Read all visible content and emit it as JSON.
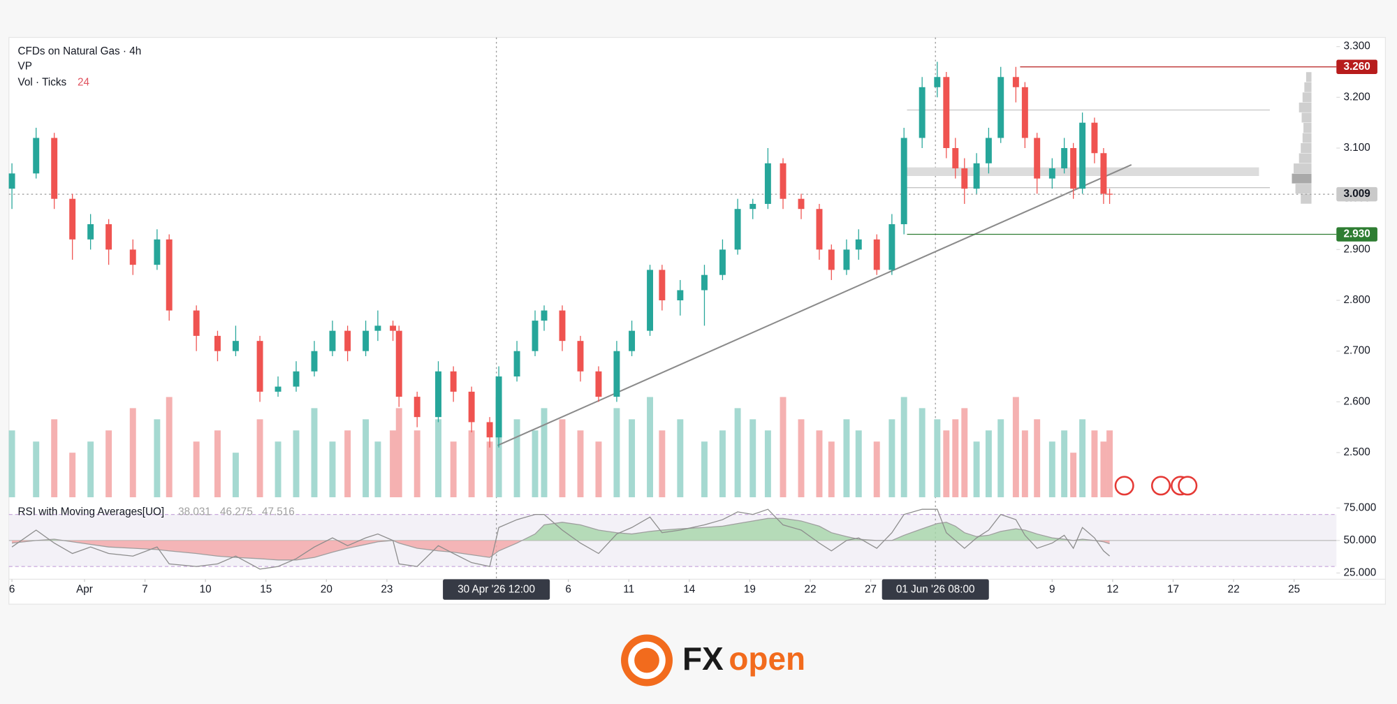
{
  "header": {
    "title": "CFDs on Natural Gas · 4h",
    "vp": "VP",
    "vol_label": "Vol · Ticks",
    "vol_length": "24"
  },
  "chart_data": {
    "type": "candlestick",
    "x": [
      0,
      0.4,
      0.7,
      1.0,
      1.3,
      1.6,
      2.0,
      2.4,
      2.6,
      3.05,
      3.4,
      3.7,
      4.1,
      4.4,
      4.7,
      5.0,
      5.3,
      5.55,
      5.85,
      6.05,
      6.3,
      6.4,
      6.7,
      7.05,
      7.3,
      7.6,
      7.9,
      8.05,
      8.35,
      8.65,
      8.8,
      9.1,
      9.4,
      9.7,
      10.0,
      10.25,
      10.55,
      10.75,
      11.05,
      11.45,
      11.75,
      12.0,
      12.25,
      12.5,
      12.75,
      13.05,
      13.35,
      13.55,
      13.8,
      14.0,
      14.3,
      14.55,
      14.75,
      15.05,
      15.3,
      15.45,
      15.6,
      15.75,
      15.95,
      16.15,
      16.35,
      16.6,
      16.75,
      16.95,
      17.2,
      17.4,
      17.55,
      17.7,
      17.9,
      18.05,
      18.15
    ],
    "open": [
      3.02,
      3.05,
      3.12,
      3.0,
      2.92,
      2.95,
      2.9,
      2.87,
      2.92,
      2.78,
      2.73,
      2.7,
      2.72,
      2.62,
      2.63,
      2.66,
      2.7,
      2.74,
      2.7,
      2.74,
      2.75,
      2.74,
      2.61,
      2.57,
      2.66,
      2.62,
      2.56,
      2.53,
      2.65,
      2.7,
      2.76,
      2.78,
      2.72,
      2.66,
      2.61,
      2.7,
      2.74,
      2.86,
      2.8,
      2.82,
      2.85,
      2.9,
      2.98,
      2.99,
      3.07,
      3.0,
      2.98,
      2.9,
      2.86,
      2.9,
      2.92,
      2.86,
      2.95,
      3.12,
      3.22,
      3.24,
      3.1,
      3.06,
      3.02,
      3.07,
      3.12,
      3.24,
      3.22,
      3.12,
      3.04,
      3.06,
      3.1,
      3.02,
      3.15,
      3.09,
      3.01
    ],
    "high": [
      3.07,
      3.14,
      3.13,
      3.01,
      2.97,
      2.96,
      2.92,
      2.94,
      2.93,
      2.79,
      2.74,
      2.75,
      2.73,
      2.65,
      2.68,
      2.72,
      2.76,
      2.75,
      2.76,
      2.78,
      2.76,
      2.75,
      2.62,
      2.68,
      2.67,
      2.63,
      2.57,
      2.67,
      2.72,
      2.78,
      2.79,
      2.79,
      2.73,
      2.67,
      2.72,
      2.76,
      2.87,
      2.87,
      2.84,
      2.87,
      2.92,
      3.0,
      3.0,
      3.1,
      3.08,
      3.01,
      2.99,
      2.91,
      2.92,
      2.94,
      2.93,
      2.97,
      3.14,
      3.24,
      3.27,
      3.25,
      3.12,
      3.08,
      3.09,
      3.14,
      3.26,
      3.26,
      3.23,
      3.13,
      3.08,
      3.12,
      3.11,
      3.17,
      3.16,
      3.1,
      3.02
    ],
    "low": [
      2.98,
      3.04,
      2.98,
      2.88,
      2.9,
      2.87,
      2.85,
      2.86,
      2.76,
      2.7,
      2.68,
      2.69,
      2.6,
      2.61,
      2.62,
      2.65,
      2.69,
      2.68,
      2.69,
      2.72,
      2.72,
      2.59,
      2.55,
      2.56,
      2.6,
      2.54,
      2.51,
      2.51,
      2.64,
      2.69,
      2.74,
      2.7,
      2.64,
      2.6,
      2.6,
      2.69,
      2.73,
      2.78,
      2.77,
      2.75,
      2.84,
      2.89,
      2.96,
      2.98,
      2.98,
      2.96,
      2.88,
      2.84,
      2.85,
      2.88,
      2.85,
      2.85,
      2.93,
      3.1,
      3.2,
      3.08,
      3.04,
      2.99,
      3.01,
      3.05,
      3.11,
      3.19,
      3.1,
      3.01,
      3.02,
      3.05,
      3.0,
      3.01,
      3.07,
      2.99,
      2.99
    ],
    "close": [
      3.05,
      3.12,
      3.0,
      2.92,
      2.95,
      2.9,
      2.87,
      2.92,
      2.78,
      2.73,
      2.7,
      2.72,
      2.62,
      2.63,
      2.66,
      2.7,
      2.74,
      2.7,
      2.74,
      2.75,
      2.74,
      2.61,
      2.57,
      2.66,
      2.62,
      2.56,
      2.53,
      2.65,
      2.7,
      2.76,
      2.78,
      2.72,
      2.66,
      2.61,
      2.7,
      2.74,
      2.86,
      2.8,
      2.82,
      2.85,
      2.9,
      2.98,
      2.99,
      3.07,
      3.0,
      2.98,
      2.9,
      2.86,
      2.9,
      2.92,
      2.86,
      2.95,
      3.12,
      3.22,
      3.24,
      3.1,
      3.06,
      3.02,
      3.07,
      3.12,
      3.24,
      3.22,
      3.12,
      3.04,
      3.06,
      3.1,
      3.02,
      3.15,
      3.09,
      3.01,
      3.009
    ],
    "volume": [
      6,
      5,
      7,
      4,
      5,
      6,
      8,
      7,
      9,
      5,
      6,
      4,
      7,
      5,
      6,
      8,
      5,
      6,
      7,
      5,
      6,
      8,
      6,
      7,
      5,
      6,
      5,
      9,
      7,
      6,
      8,
      7,
      6,
      5,
      8,
      7,
      9,
      6,
      7,
      5,
      6,
      8,
      7,
      6,
      9,
      7,
      6,
      5,
      7,
      6,
      5,
      7,
      9,
      8,
      7,
      6,
      7,
      8,
      5,
      6,
      7,
      9,
      6,
      7,
      5,
      6,
      4,
      7,
      6,
      5,
      6
    ],
    "volume_ylim": [
      0,
      12
    ],
    "up_color": "#26a69a",
    "down_color": "#ef5350",
    "xlim": [
      -0.05,
      21.9
    ],
    "xticks": [
      {
        "value": 0,
        "label": "6"
      },
      {
        "value": 1.2,
        "label": "Apr"
      },
      {
        "value": 2.2,
        "label": "7"
      },
      {
        "value": 3.2,
        "label": "10"
      },
      {
        "value": 4.2,
        "label": "15"
      },
      {
        "value": 5.2,
        "label": "20"
      },
      {
        "value": 6.2,
        "label": "23"
      },
      {
        "value": 9.2,
        "label": "6"
      },
      {
        "value": 10.2,
        "label": "11"
      },
      {
        "value": 11.2,
        "label": "14"
      },
      {
        "value": 12.2,
        "label": "19"
      },
      {
        "value": 13.2,
        "label": "22"
      },
      {
        "value": 14.2,
        "label": "27"
      },
      {
        "value": 17.2,
        "label": "9"
      },
      {
        "value": 18.2,
        "label": "12"
      },
      {
        "value": 19.2,
        "label": "17"
      },
      {
        "value": 20.2,
        "label": "22"
      },
      {
        "value": 21.2,
        "label": "25"
      }
    ],
    "ylim": [
      2.412,
      3.318
    ],
    "yticks": [
      {
        "value": 2.5,
        "label": "2.500"
      },
      {
        "value": 2.6,
        "label": "2.600"
      },
      {
        "value": 2.7,
        "label": "2.700"
      },
      {
        "value": 2.8,
        "label": "2.800"
      },
      {
        "value": 2.9,
        "label": "2.900"
      },
      {
        "value": 3.0,
        "label": "3.000"
      },
      {
        "value": 3.1,
        "label": "3.100"
      },
      {
        "value": 3.2,
        "label": "3.200"
      },
      {
        "value": 3.3,
        "label": "3.300"
      }
    ],
    "grid": false,
    "price_labels": [
      {
        "value": 3.26,
        "label": "3.260",
        "color": "#b71c1c",
        "line_from": 16.67,
        "style": "solid"
      },
      {
        "value": 3.009,
        "label": "3.009",
        "color": "#c9c9c9",
        "line_from": -0.05,
        "style": "dotted"
      },
      {
        "value": 2.93,
        "label": "2.930",
        "color": "#2e7d32",
        "line_from": 14.8,
        "style": "solid"
      }
    ],
    "levels": [
      {
        "value": 3.175,
        "x": [
          14.8,
          20.8
        ]
      },
      {
        "value": 3.022,
        "x": [
          14.8,
          20.8
        ]
      }
    ],
    "zone": {
      "ylim": [
        3.045,
        3.062
      ],
      "x": [
        14.8,
        20.62
      ]
    },
    "trendline": {
      "x": [
        8.03,
        18.51
      ],
      "y": [
        2.514,
        3.067
      ]
    },
    "crosshair_labels": [
      {
        "x": 8.01,
        "label": "30 Apr '26 12:00"
      },
      {
        "x": 15.27,
        "label": "01 Jun '26 08:00"
      }
    ],
    "volume_profile": {
      "prices": [
        3.0,
        3.02,
        3.04,
        3.06,
        3.08,
        3.1,
        3.12,
        3.14,
        3.16,
        3.18,
        3.2,
        3.22,
        3.24
      ],
      "values": [
        12,
        18,
        22,
        20,
        14,
        12,
        10,
        9,
        11,
        14,
        10,
        8,
        6
      ],
      "xlim": [
        0,
        25
      ]
    },
    "rsi": {
      "title": "RSI with Moving Averages[UO]",
      "legend_values": [
        "38.031",
        "46.275",
        "47.516"
      ],
      "values": [
        45,
        58,
        48,
        40,
        45,
        40,
        38,
        45,
        32,
        30,
        32,
        38,
        28,
        30,
        36,
        45,
        52,
        46,
        52,
        55,
        50,
        32,
        30,
        46,
        40,
        33,
        30,
        60,
        66,
        70,
        70,
        58,
        48,
        40,
        55,
        60,
        68,
        56,
        58,
        62,
        66,
        72,
        70,
        74,
        62,
        58,
        48,
        42,
        50,
        52,
        44,
        56,
        70,
        74,
        74,
        56,
        50,
        44,
        52,
        58,
        70,
        66,
        54,
        44,
        48,
        54,
        44,
        60,
        52,
        42,
        38.031
      ],
      "ma": [
        48,
        50,
        51,
        49,
        47,
        45,
        44,
        43,
        42,
        40,
        38,
        37,
        36,
        35,
        35,
        37,
        41,
        44,
        47,
        49,
        50,
        48,
        44,
        42,
        41,
        39,
        37,
        42,
        48,
        55,
        62,
        64,
        62,
        58,
        56,
        55,
        57,
        58,
        59,
        60,
        61,
        63,
        65,
        67,
        67,
        65,
        61,
        56,
        53,
        51,
        50,
        50,
        54,
        59,
        63,
        64,
        61,
        56,
        53,
        54,
        57,
        59,
        58,
        55,
        52,
        51,
        50,
        51,
        50,
        49,
        47.516
      ],
      "ylim": [
        20.2,
        80.5
      ],
      "yticks": [
        {
          "value": 25,
          "label": "25.000"
        },
        {
          "value": 50,
          "label": "50.000"
        },
        {
          "value": 75,
          "label": "75.000"
        }
      ],
      "bands": [
        30,
        70
      ],
      "midline": 50
    }
  },
  "logo": {
    "fx": "FX",
    "open": "open"
  }
}
